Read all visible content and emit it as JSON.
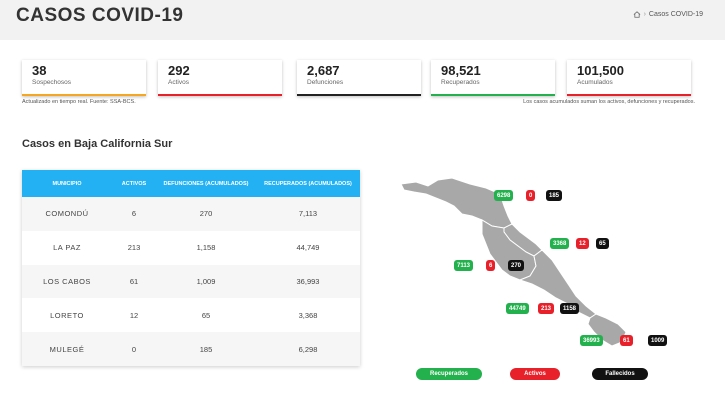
{
  "header": {
    "title": "CASOS COVID-19",
    "breadcrumb_current": "Casos COVID-19",
    "breadcrumb_sep": "›"
  },
  "stats": [
    {
      "value": "38",
      "label": "Sospechosos",
      "color": "#f5a623"
    },
    {
      "value": "292",
      "label": "Activos",
      "color": "#e8202a"
    },
    {
      "value": "2,687",
      "label": "Defunciones",
      "color": "#222222"
    },
    {
      "value": "98,521",
      "label": "Recuperados",
      "color": "#22b14c"
    },
    {
      "value": "101,500",
      "label": "Acumulados",
      "color": "#e8202a"
    }
  ],
  "notes": {
    "left": "Actualizado en tiempo real. Fuente: SSA-BCS.",
    "right": "Los casos acumulados suman los activos, defunciones y recuperados."
  },
  "section_title": "Casos en Baja California Sur",
  "table": {
    "headers": [
      "MUNICIPIO",
      "ACTIVOS",
      "DEFUNCIONES (ACUMULADOS)",
      "RECUPERADOS (ACUMULADOS)"
    ],
    "rows": [
      {
        "municipio": "COMONDÚ",
        "activos": "6",
        "defunciones": "270",
        "recuperados": "7,113"
      },
      {
        "municipio": "LA PAZ",
        "activos": "213",
        "defunciones": "1,158",
        "recuperados": "44,749"
      },
      {
        "municipio": "LOS CABOS",
        "activos": "61",
        "defunciones": "1,009",
        "recuperados": "36,993"
      },
      {
        "municipio": "LORETO",
        "activos": "12",
        "defunciones": "65",
        "recuperados": "3,368"
      },
      {
        "municipio": "MULEGÉ",
        "activos": "0",
        "defunciones": "185",
        "recuperados": "6,298"
      }
    ]
  },
  "map": {
    "mulege": [
      "6298",
      "0",
      "185"
    ],
    "loreto": [
      "3368",
      "12",
      "65"
    ],
    "comondu": [
      "7113",
      "6",
      "270"
    ],
    "lapaz": [
      "44749",
      "213",
      "1158"
    ],
    "loscabos": [
      "36993",
      "61",
      "1009"
    ]
  },
  "legend": {
    "recuperados": "Recuperados",
    "activos": "Activos",
    "fallecidos": "Fallecidos"
  },
  "colors": {
    "accent_blue": "#23b1f4",
    "green": "#22b14c",
    "red": "#e8202a",
    "black": "#111111",
    "map_fill": "#a8a8a8"
  }
}
